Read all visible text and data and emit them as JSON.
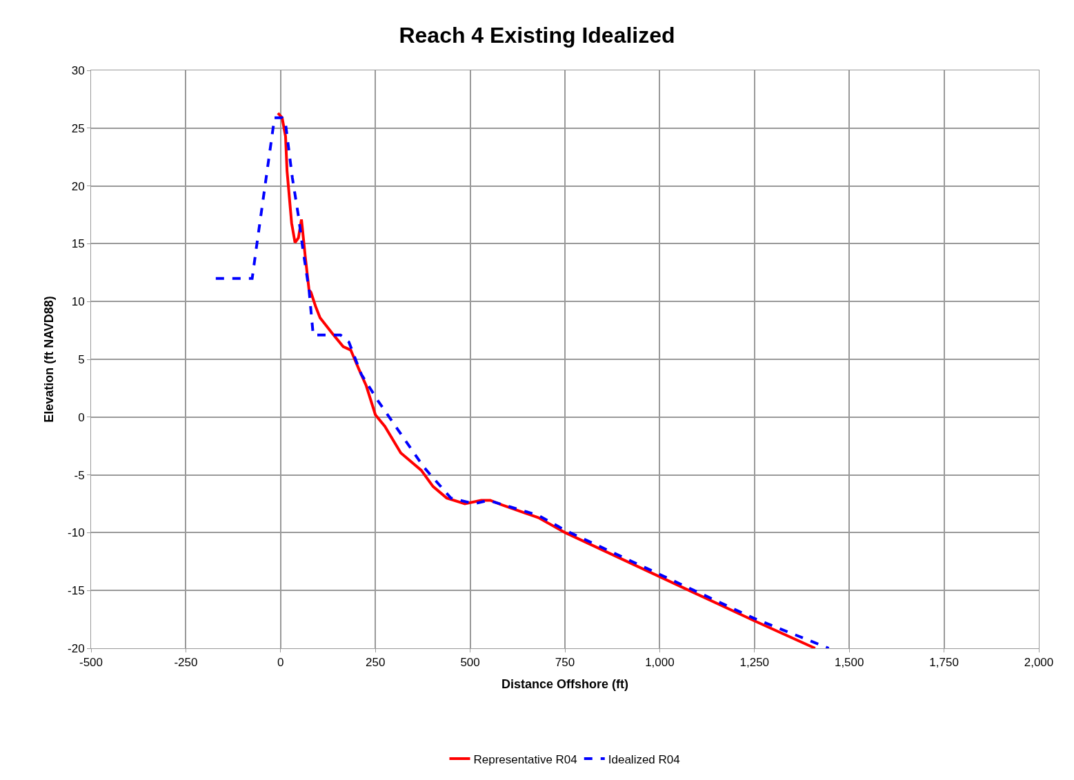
{
  "chart_data": {
    "type": "line",
    "title": "Reach 4 Existing Idealized",
    "xlabel": "Distance Offshore (ft)",
    "ylabel": "Elevation (ft NAVD88)",
    "xlim": [
      -500,
      2000
    ],
    "xticks": [
      -500,
      -250,
      0,
      250,
      500,
      750,
      {
        "value": 1000,
        "label": "1,000"
      },
      {
        "value": 1250,
        "label": "1,250"
      },
      {
        "value": 1500,
        "label": "1,500"
      },
      {
        "value": 1750,
        "label": "1,750"
      },
      {
        "value": 2000,
        "label": "2,000"
      }
    ],
    "ylim": [
      -20,
      30
    ],
    "yticks": [
      -20,
      -15,
      -10,
      -5,
      0,
      5,
      10,
      15,
      20,
      25,
      30
    ],
    "grid": true,
    "legend": "bottom",
    "marker": "none",
    "series": [
      {
        "name": "Representative R04",
        "color": "#ff0000",
        "line_style": "solid",
        "x": [
          -7,
          4,
          13,
          17,
          29,
          38,
          47,
          55,
          65,
          75,
          80,
          92,
          104,
          135,
          165,
          185,
          207,
          226,
          250,
          275,
          317,
          371,
          402,
          438,
          486,
          529,
          553,
          584,
          680,
          751,
          1248,
          1410
        ],
        "values": [
          26.3,
          25.9,
          24.3,
          21.3,
          16.8,
          15.1,
          15.5,
          17.1,
          13.9,
          11.0,
          10.8,
          9.6,
          8.6,
          7.3,
          6.1,
          5.8,
          4.1,
          2.7,
          0.2,
          -0.8,
          -3.1,
          -4.6,
          -6.0,
          -7.0,
          -7.5,
          -7.2,
          -7.2,
          -7.6,
          -8.7,
          -10.0,
          -17.6,
          -20.0
        ]
      },
      {
        "name": "Idealized R04",
        "color": "#0000ff",
        "line_style": "dashed",
        "x": [
          -171,
          -75,
          -62,
          -16,
          4,
          13,
          31,
          47,
          58,
          75,
          86,
          158,
          180,
          213,
          257,
          377,
          449,
          511,
          548,
          680,
          751,
          1248,
          1446
        ],
        "values": [
          12.0,
          12.0,
          15.1,
          25.9,
          25.9,
          25.4,
          20.7,
          17.4,
          14.7,
          11.0,
          7.1,
          7.1,
          6.5,
          3.7,
          1.4,
          -4.3,
          -7.0,
          -7.5,
          -7.2,
          -8.5,
          -9.8,
          -17.4,
          -20.0
        ]
      }
    ]
  }
}
